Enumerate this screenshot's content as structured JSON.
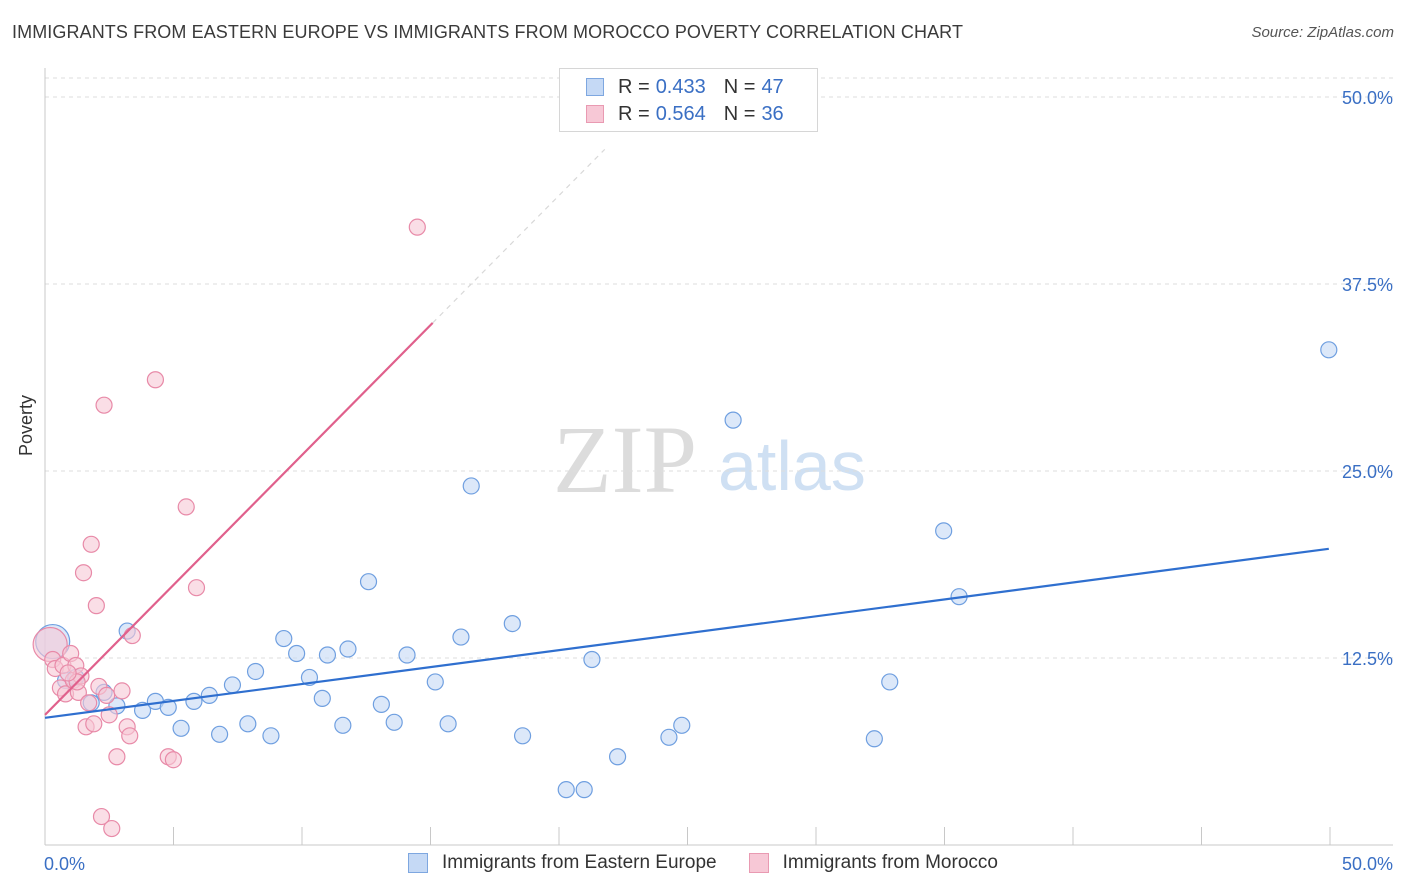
{
  "title": "IMMIGRANTS FROM EASTERN EUROPE VS IMMIGRANTS FROM MOROCCO POVERTY CORRELATION CHART",
  "source": "Source: ZipAtlas.com",
  "watermark": {
    "zip": "ZIP",
    "atlas": "atlas"
  },
  "legend": {
    "r_label": "R =",
    "n_label": "N =",
    "series": [
      {
        "r": "0.433",
        "n": "47"
      },
      {
        "r": "0.564",
        "n": "36"
      }
    ]
  },
  "chart_data": {
    "type": "scatter",
    "title": "IMMIGRANTS FROM EASTERN EUROPE VS IMMIGRANTS FROM MOROCCO POVERTY CORRELATION CHART",
    "xlabel": "",
    "ylabel": "Poverty",
    "xlim": [
      0,
      52.5
    ],
    "ylim": [
      0,
      50.0
    ],
    "x_tick_labels": [
      {
        "value": 0,
        "label": "0.0%"
      },
      {
        "value": 50,
        "label": "50.0%"
      }
    ],
    "y_tick_labels": [
      {
        "value": 12.5,
        "label": "12.5%"
      },
      {
        "value": 25.0,
        "label": "25.0%"
      },
      {
        "value": 37.5,
        "label": "37.5%"
      },
      {
        "value": 50.0,
        "label": "50.0%"
      }
    ],
    "series": [
      {
        "name": "Immigrants from Eastern Europe",
        "color": "#6f9fe0",
        "fill": "#c5d9f5",
        "trend": {
          "x": [
            0,
            50
          ],
          "y": [
            8.5,
            19.8
          ],
          "color": "#2f6fcf"
        },
        "points": [
          {
            "x": 0.3,
            "y": 13.6,
            "big": true
          },
          {
            "x": 0.8,
            "y": 11.0
          },
          {
            "x": 1.2,
            "y": 11.2
          },
          {
            "x": 1.8,
            "y": 9.5
          },
          {
            "x": 2.3,
            "y": 10.2
          },
          {
            "x": 2.8,
            "y": 9.3
          },
          {
            "x": 3.2,
            "y": 14.3
          },
          {
            "x": 3.8,
            "y": 9.0
          },
          {
            "x": 4.3,
            "y": 9.6
          },
          {
            "x": 4.8,
            "y": 9.2
          },
          {
            "x": 5.3,
            "y": 7.8
          },
          {
            "x": 5.8,
            "y": 9.6
          },
          {
            "x": 6.4,
            "y": 10.0
          },
          {
            "x": 6.8,
            "y": 7.4
          },
          {
            "x": 7.3,
            "y": 10.7
          },
          {
            "x": 7.9,
            "y": 8.1
          },
          {
            "x": 8.2,
            "y": 11.6
          },
          {
            "x": 8.8,
            "y": 7.3
          },
          {
            "x": 9.3,
            "y": 13.8
          },
          {
            "x": 9.8,
            "y": 12.8
          },
          {
            "x": 10.3,
            "y": 11.2
          },
          {
            "x": 10.8,
            "y": 9.8
          },
          {
            "x": 11.0,
            "y": 12.7
          },
          {
            "x": 11.6,
            "y": 8.0
          },
          {
            "x": 11.8,
            "y": 13.1
          },
          {
            "x": 12.6,
            "y": 17.6
          },
          {
            "x": 13.1,
            "y": 9.4
          },
          {
            "x": 13.6,
            "y": 8.2
          },
          {
            "x": 14.1,
            "y": 12.7
          },
          {
            "x": 15.2,
            "y": 10.9
          },
          {
            "x": 15.7,
            "y": 8.1
          },
          {
            "x": 16.2,
            "y": 13.9
          },
          {
            "x": 16.6,
            "y": 24.0
          },
          {
            "x": 18.2,
            "y": 14.8
          },
          {
            "x": 18.6,
            "y": 7.3
          },
          {
            "x": 20.3,
            "y": 3.7
          },
          {
            "x": 21.0,
            "y": 3.7
          },
          {
            "x": 21.3,
            "y": 12.4
          },
          {
            "x": 22.3,
            "y": 5.9
          },
          {
            "x": 24.3,
            "y": 7.2
          },
          {
            "x": 24.8,
            "y": 8.0
          },
          {
            "x": 26.8,
            "y": 28.4
          },
          {
            "x": 32.3,
            "y": 7.1
          },
          {
            "x": 32.9,
            "y": 10.9
          },
          {
            "x": 35.0,
            "y": 21.0
          },
          {
            "x": 35.6,
            "y": 16.6
          },
          {
            "x": 50.0,
            "y": 33.1
          }
        ]
      },
      {
        "name": "Immigrants from Morocco",
        "color": "#e88aa8",
        "fill": "#f7c8d6",
        "trend": {
          "x": [
            0,
            15.1
          ],
          "y": [
            8.7,
            34.9
          ],
          "color": "#e0608c",
          "dashed_extension": {
            "x": [
              15.1,
              21.8
            ],
            "y": [
              34.9,
              46.5
            ]
          }
        },
        "points": [
          {
            "x": 0.2,
            "y": 13.4,
            "big": true
          },
          {
            "x": 0.3,
            "y": 12.4
          },
          {
            "x": 0.4,
            "y": 11.8
          },
          {
            "x": 0.6,
            "y": 10.5
          },
          {
            "x": 0.7,
            "y": 12.0
          },
          {
            "x": 0.8,
            "y": 10.1
          },
          {
            "x": 1.0,
            "y": 12.8
          },
          {
            "x": 1.1,
            "y": 11.0
          },
          {
            "x": 1.2,
            "y": 12.0
          },
          {
            "x": 1.3,
            "y": 10.2
          },
          {
            "x": 1.4,
            "y": 11.3
          },
          {
            "x": 1.5,
            "y": 18.2
          },
          {
            "x": 1.6,
            "y": 7.9
          },
          {
            "x": 1.7,
            "y": 9.5
          },
          {
            "x": 1.8,
            "y": 20.1
          },
          {
            "x": 1.9,
            "y": 8.1
          },
          {
            "x": 2.0,
            "y": 16.0
          },
          {
            "x": 2.1,
            "y": 10.6
          },
          {
            "x": 2.2,
            "y": 1.9
          },
          {
            "x": 2.3,
            "y": 29.4
          },
          {
            "x": 2.4,
            "y": 10.0
          },
          {
            "x": 2.5,
            "y": 8.7
          },
          {
            "x": 2.6,
            "y": 1.1
          },
          {
            "x": 2.8,
            "y": 5.9
          },
          {
            "x": 3.0,
            "y": 10.3
          },
          {
            "x": 3.2,
            "y": 7.9
          },
          {
            "x": 3.3,
            "y": 7.3
          },
          {
            "x": 3.4,
            "y": 14.0
          },
          {
            "x": 4.3,
            "y": 31.1
          },
          {
            "x": 4.8,
            "y": 5.9
          },
          {
            "x": 5.0,
            "y": 5.7
          },
          {
            "x": 5.5,
            "y": 22.6
          },
          {
            "x": 5.9,
            "y": 17.2
          },
          {
            "x": 14.5,
            "y": 41.3
          },
          {
            "x": 1.25,
            "y": 10.9
          },
          {
            "x": 0.9,
            "y": 11.5
          }
        ]
      }
    ],
    "legend_position": "top-center"
  }
}
